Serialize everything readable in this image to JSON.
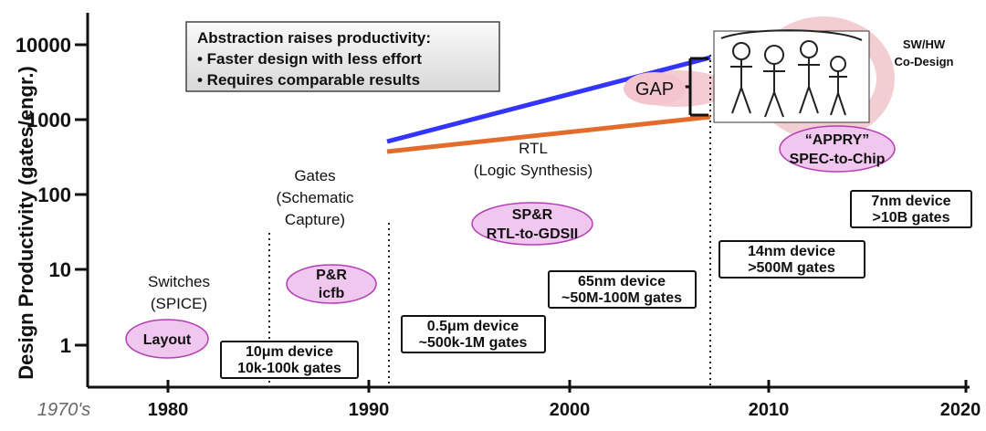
{
  "chart_data": {
    "type": "diagram",
    "x_axis": {
      "start_label": "1970's",
      "ticks": [
        "1980",
        "1990",
        "2000",
        "2010",
        "2020"
      ]
    },
    "y_axis": {
      "label": "Design Productivity (gates/engr.)",
      "ticks": [
        "1",
        "10",
        "100",
        "1000",
        "10000"
      ],
      "scale": "log"
    },
    "notes": {
      "headline": "Abstraction raises productivity:",
      "bullet_1": "• Faster design with less effort",
      "bullet_2": "• Requires comparable results"
    },
    "phases": [
      {
        "name": "Switches",
        "detail": "(SPICE)"
      },
      {
        "name": "Gates",
        "detail": "(Schematic",
        "detail2": "Capture)"
      },
      {
        "name": "RTL",
        "detail": "(Logic Synthesis)"
      }
    ],
    "ovals": [
      {
        "label": "Layout"
      },
      {
        "label": "P&R",
        "label2": "icfb"
      },
      {
        "label": "SP&R",
        "label2": "RTL-to-GDSII"
      },
      {
        "label": "“APPRY”",
        "label2": "SPEC-to-Chip"
      }
    ],
    "device_boxes": [
      {
        "line1": "10μm device",
        "line2": "10k-100k gates"
      },
      {
        "line1": "0.5μm device",
        "line2": "~500k-1M gates"
      },
      {
        "line1": "65nm device",
        "line2": "~50M-100M gates"
      },
      {
        "line1": "14nm device",
        "line2": ">500M gates"
      },
      {
        "line1": "7nm device",
        "line2": ">10B gates"
      }
    ],
    "gap_label": "GAP",
    "sw_hw": {
      "line1": "SW/HW",
      "line2": "Co-Design"
    },
    "colors": {
      "blue_line": "#3434ff",
      "orange_line": "#e36b2c",
      "oval_fill": "#f0c7ee",
      "oval_stroke": "#b53db6",
      "note_fill": "#ececec",
      "device_stroke": "#111111"
    }
  }
}
